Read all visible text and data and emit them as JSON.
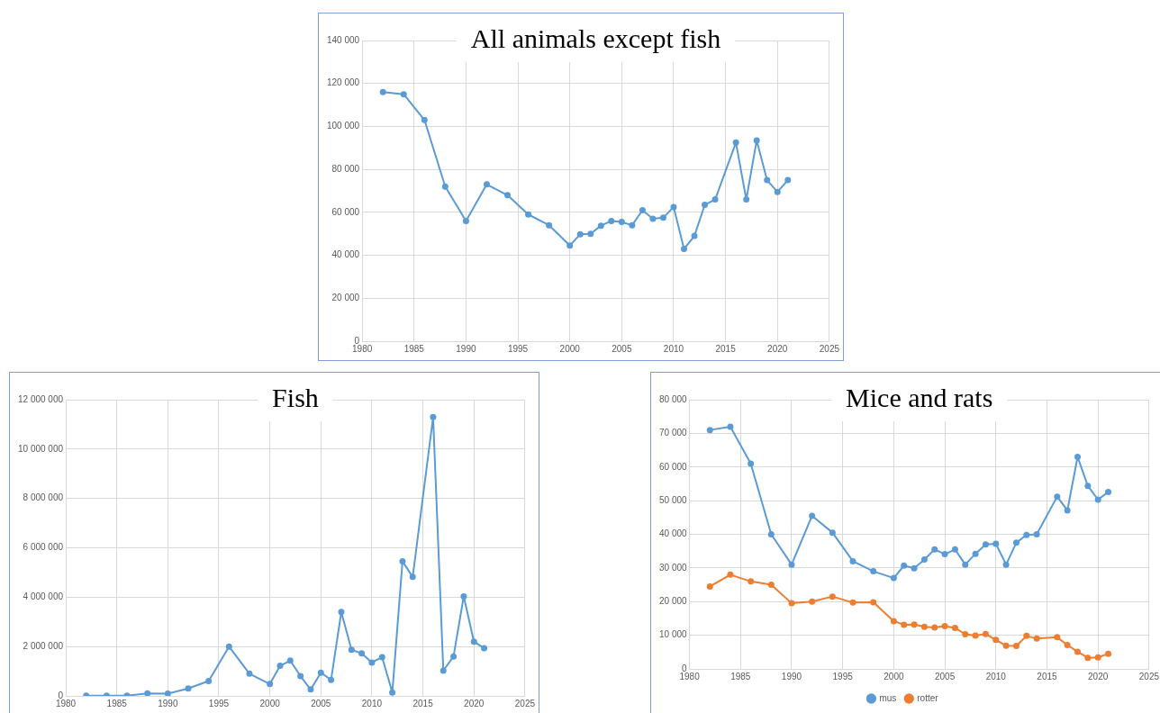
{
  "chart_data": [
    {
      "type": "line",
      "title": "All animals except fish",
      "x": [
        1982,
        1984,
        1986,
        1988,
        1990,
        1992,
        1994,
        1996,
        1998,
        2000,
        2001,
        2002,
        2003,
        2004,
        2005,
        2006,
        2007,
        2008,
        2009,
        2010,
        2011,
        2012,
        2013,
        2014,
        2016,
        2017,
        2018,
        2019,
        2020,
        2021
      ],
      "series": [
        {
          "color": "#5b9bd5",
          "values": [
            116000,
            115000,
            103000,
            72000,
            56000,
            73000,
            68000,
            59000,
            54000,
            44500,
            49800,
            50000,
            53800,
            56000,
            55500,
            54000,
            61000,
            57000,
            57500,
            62500,
            43000,
            49000,
            63500,
            66000,
            92500,
            66000,
            93500,
            75000,
            69500,
            75000
          ]
        }
      ],
      "xlim": [
        1980,
        2025
      ],
      "xticks": [
        1980,
        1985,
        1990,
        1995,
        2000,
        2005,
        2010,
        2015,
        2020,
        2025
      ],
      "ylim": [
        0,
        140000
      ],
      "yticks": [
        {
          "value": 0,
          "label": "0"
        },
        {
          "value": 20000,
          "label": "20 000"
        },
        {
          "value": 40000,
          "label": "40 000"
        },
        {
          "value": 60000,
          "label": "60 000"
        },
        {
          "value": 80000,
          "label": "80 000"
        },
        {
          "value": 100000,
          "label": "100 000"
        },
        {
          "value": 120000,
          "label": "120 000"
        },
        {
          "value": 140000,
          "label": "140 000"
        }
      ],
      "grid": true,
      "legend": false,
      "marker": "circle",
      "line_style": "solid"
    },
    {
      "type": "line",
      "title": "Fish",
      "x": [
        1982,
        1984,
        1986,
        1988,
        1990,
        1992,
        1994,
        1996,
        1998,
        2000,
        2001,
        2002,
        2003,
        2004,
        2005,
        2006,
        2007,
        2008,
        2009,
        2010,
        2011,
        2012,
        2013,
        2014,
        2016,
        2017,
        2018,
        2019,
        2020,
        2021
      ],
      "series": [
        {
          "color": "#5b9bd5",
          "values": [
            10000,
            10000,
            10000,
            100000,
            90000,
            300000,
            600000,
            2000000,
            900000,
            480000,
            1220000,
            1430000,
            800000,
            260000,
            940000,
            650000,
            3400000,
            1870000,
            1720000,
            1350000,
            1570000,
            140000,
            5450000,
            4820000,
            11300000,
            1020000,
            1600000,
            4030000,
            2200000,
            1930000
          ]
        }
      ],
      "xlim": [
        1980,
        2025
      ],
      "xticks": [
        1980,
        1985,
        1990,
        1995,
        2000,
        2005,
        2010,
        2015,
        2020,
        2025
      ],
      "ylim": [
        0,
        12000000
      ],
      "yticks": [
        {
          "value": 0,
          "label": "0"
        },
        {
          "value": 2000000,
          "label": "2 000 000"
        },
        {
          "value": 4000000,
          "label": "4 000 000"
        },
        {
          "value": 6000000,
          "label": "6 000 000"
        },
        {
          "value": 8000000,
          "label": "8 000 000"
        },
        {
          "value": 10000000,
          "label": "10 000 000"
        },
        {
          "value": 12000000,
          "label": "12 000 000"
        }
      ],
      "grid": true,
      "legend": false,
      "marker": "circle",
      "line_style": "solid"
    },
    {
      "type": "line",
      "title": "Mice and rats",
      "x": [
        1982,
        1984,
        1986,
        1988,
        1990,
        1992,
        1994,
        1996,
        1998,
        2000,
        2001,
        2002,
        2003,
        2004,
        2005,
        2006,
        2007,
        2008,
        2009,
        2010,
        2011,
        2012,
        2013,
        2014,
        2016,
        2017,
        2018,
        2019,
        2020,
        2021
      ],
      "series": [
        {
          "name": "mus",
          "color": "#5b9bd5",
          "values": [
            71000,
            72000,
            61000,
            40000,
            31000,
            45500,
            40500,
            32000,
            29000,
            27000,
            30700,
            29900,
            32500,
            35500,
            34100,
            35500,
            31000,
            34200,
            37000,
            37200,
            31000,
            37500,
            39800,
            40000,
            51200,
            47100,
            63000,
            54400,
            50300,
            52600
          ]
        },
        {
          "name": "rotter",
          "color": "#ed7d31",
          "values": [
            24500,
            28000,
            26000,
            25000,
            19500,
            20000,
            21500,
            19700,
            19800,
            14200,
            13100,
            13200,
            12500,
            12300,
            12700,
            12200,
            10300,
            9900,
            10400,
            8600,
            6900,
            6800,
            9800,
            9000,
            9400,
            7100,
            5100,
            3300,
            3400,
            4500
          ]
        }
      ],
      "xlim": [
        1980,
        2025
      ],
      "xticks": [
        1980,
        1985,
        1990,
        1995,
        2000,
        2005,
        2010,
        2015,
        2020,
        2025
      ],
      "ylim": [
        0,
        80000
      ],
      "yticks": [
        {
          "value": 0,
          "label": "0"
        },
        {
          "value": 10000,
          "label": "10 000"
        },
        {
          "value": 20000,
          "label": "20 000"
        },
        {
          "value": 30000,
          "label": "30 000"
        },
        {
          "value": 40000,
          "label": "40 000"
        },
        {
          "value": 50000,
          "label": "50 000"
        },
        {
          "value": 60000,
          "label": "60 000"
        },
        {
          "value": 70000,
          "label": "70 000"
        },
        {
          "value": 80000,
          "label": "80 000"
        }
      ],
      "grid": true,
      "legend": "bottom",
      "marker": "circle",
      "line_style": "solid"
    }
  ]
}
